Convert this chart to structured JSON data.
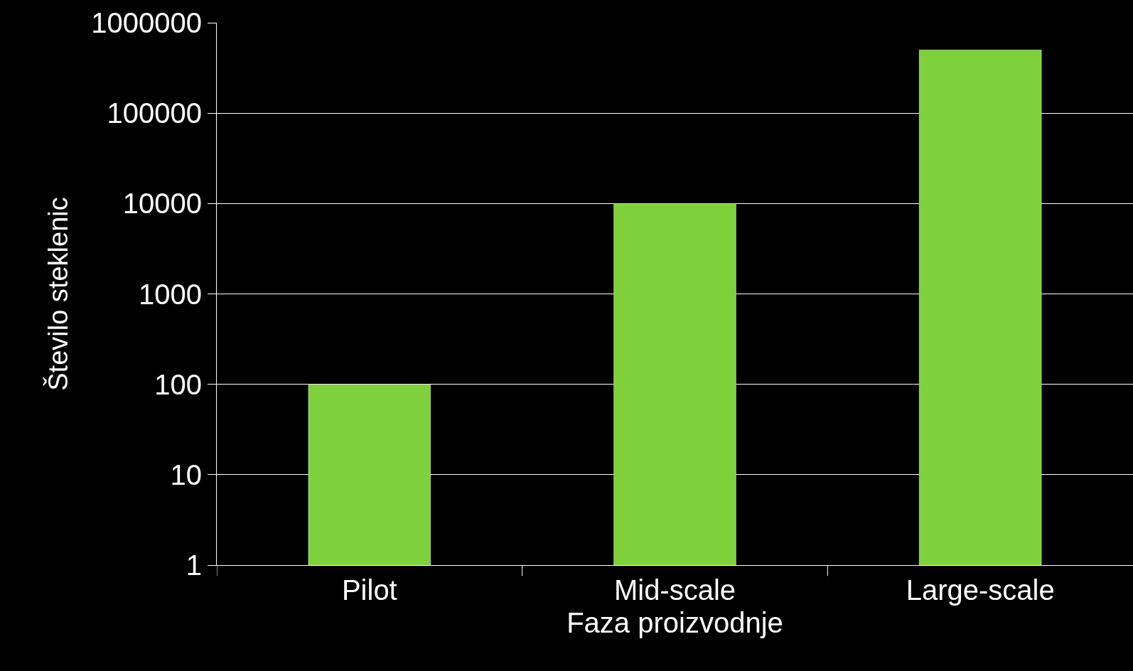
{
  "chart_data": {
    "type": "bar",
    "xlabel": "Faza proizvodnje",
    "ylabel": "Število steklenic",
    "categories": [
      "Pilot",
      "Mid-scale",
      "Large-scale"
    ],
    "values": [
      100,
      10000,
      500000
    ],
    "color": "#7fd13b",
    "log": true,
    "ylim": [
      1,
      1000000
    ],
    "yticks": [
      1,
      10,
      100,
      1000,
      10000,
      100000,
      1000000
    ],
    "grid": "y",
    "legend": false
  }
}
